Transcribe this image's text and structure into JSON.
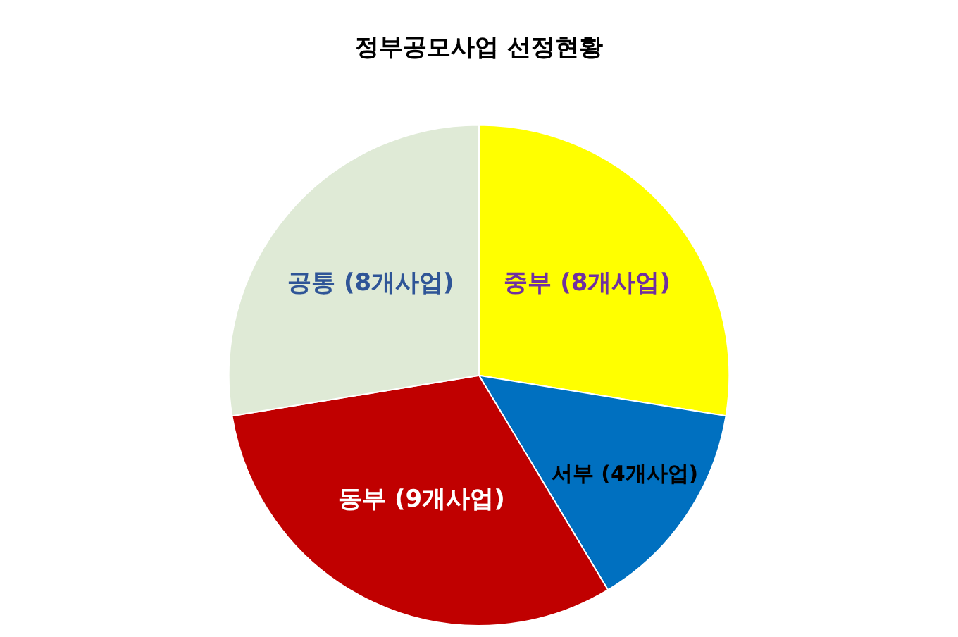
{
  "chart_data": {
    "type": "pie",
    "title": "정부공모사업 선정현황",
    "categories": [
      "중부 (8개사업)",
      "서부 (4개사업)",
      "동부 (9개사업)",
      "공통 (8개사업)"
    ],
    "values": [
      8,
      4,
      9,
      8
    ],
    "colors": [
      "#ffff00",
      "#0070c0",
      "#c00000",
      "#dfead6"
    ],
    "legend": false
  }
}
